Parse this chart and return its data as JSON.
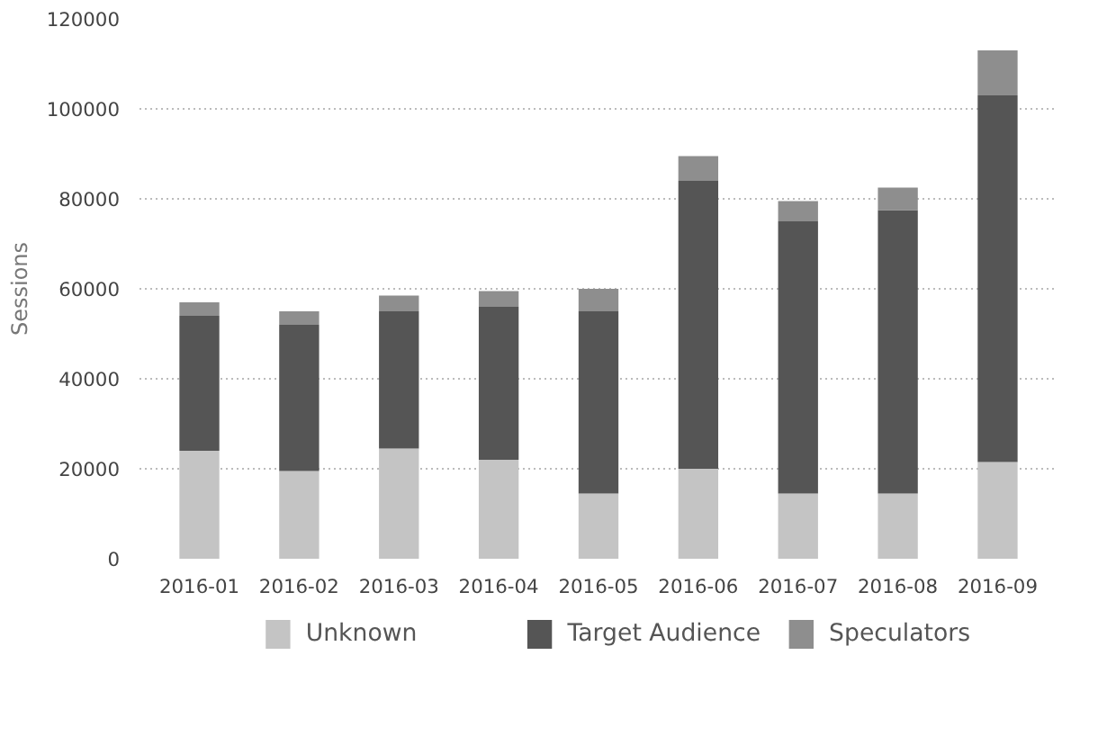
{
  "chart_data": {
    "type": "bar",
    "stacked": true,
    "ylabel": "Sessions",
    "categories": [
      "2016-01",
      "2016-02",
      "2016-03",
      "2016-04",
      "2016-05",
      "2016-06",
      "2016-07",
      "2016-08",
      "2016-09"
    ],
    "series": [
      {
        "name": "Unknown",
        "color": "#c4c4c4",
        "values": [
          24000,
          19500,
          24500,
          22000,
          14500,
          20000,
          14500,
          14500,
          21500
        ]
      },
      {
        "name": "Target Audience",
        "color": "#555555",
        "values": [
          30000,
          32500,
          30500,
          34000,
          40500,
          64000,
          60500,
          63000,
          81500
        ]
      },
      {
        "name": "Speculators",
        "color": "#8e8e8e",
        "values": [
          3000,
          3000,
          3500,
          3500,
          5000,
          5500,
          4500,
          5000,
          10000
        ]
      }
    ],
    "ylim": [
      0,
      120000
    ],
    "yticks": [
      0,
      20000,
      40000,
      60000,
      80000,
      100000,
      120000
    ],
    "grid": "y",
    "legend": "bottom"
  }
}
